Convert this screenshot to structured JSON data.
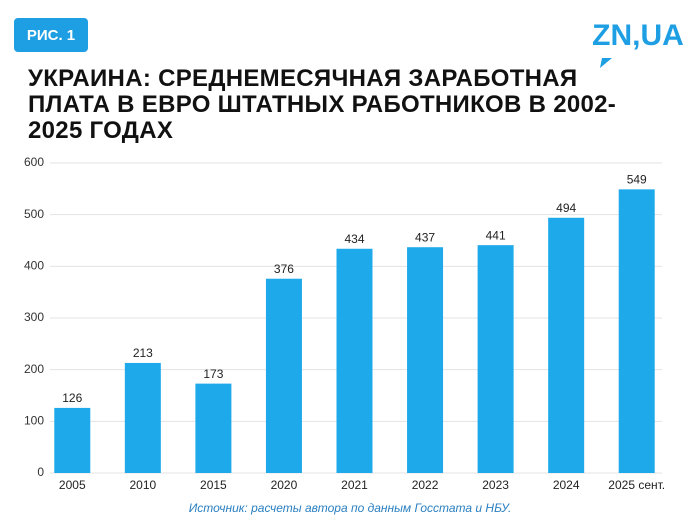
{
  "badge": "РИС. 1",
  "logo": "ZN,UA",
  "chart_data": {
    "type": "bar",
    "title": "УКРАИНА: СРЕДНЕМЕСЯЧНАЯ ЗАРАБОТНАЯ ПЛАТА В ЕВРО ШТАТНЫХ РАБОТНИКОВ В 2002-2025 ГОДАХ",
    "categories": [
      "2005",
      "2010",
      "2015",
      "2020",
      "2021",
      "2022",
      "2023",
      "2024",
      "2025 сент."
    ],
    "values": [
      126,
      213,
      173,
      376,
      434,
      437,
      441,
      494,
      549
    ],
    "color": "#1eaaea",
    "ylim": [
      0,
      600
    ],
    "yticks": [
      0,
      100,
      200,
      300,
      400,
      500,
      600
    ],
    "grid": true,
    "source": "Источник: расчеты автора по данным Госстата и НБУ."
  }
}
